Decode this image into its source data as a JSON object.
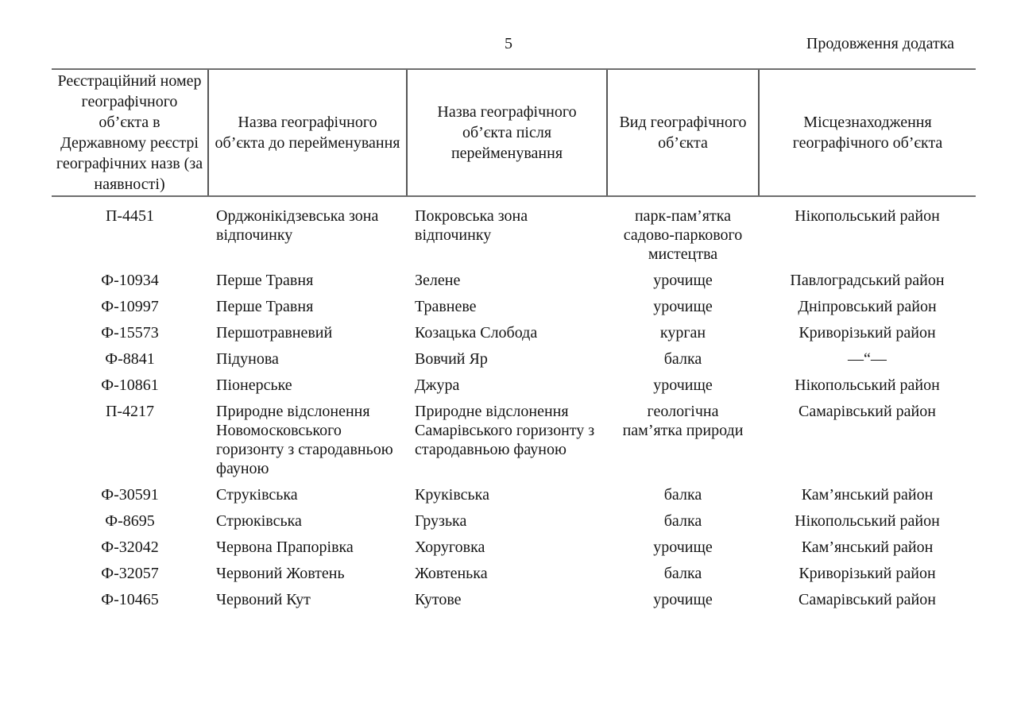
{
  "page": {
    "number": "5",
    "continuation": "Продовження додатка"
  },
  "table": {
    "headers": [
      "Реєстраційний номер географічного об’єкта в Державному реєстрі географічних назв (за наявності)",
      "Назва географічного об’єкта до перейменування",
      "Назва географічного об’єкта після перейменування",
      "Вид географічного об’єкта",
      "Місцезнаходження географічного об’єкта"
    ],
    "rows": [
      [
        "П-4451",
        "Орджонікідзевська зона відпочинку",
        "Покровська зона відпочинку",
        "парк-пам’ятка садово-паркового мистецтва",
        "Нікопольський район"
      ],
      [
        "Ф-10934",
        "Перше Травня",
        "Зелене",
        "урочище",
        "Павлоградський район"
      ],
      [
        "Ф-10997",
        "Перше Травня",
        "Травневе",
        "урочище",
        "Дніпровський район"
      ],
      [
        "Ф-15573",
        "Першотравневий",
        "Козацька Слобода",
        "курган",
        "Криворізький район"
      ],
      [
        "Ф-8841",
        "Підунова",
        "Вовчий Яр",
        "балка",
        "—“—"
      ],
      [
        "Ф-10861",
        "Піонерське",
        "Джура",
        "урочище",
        "Нікопольський район"
      ],
      [
        "П-4217",
        "Природне відслонення Новомосковського горизонту з стародавньою фауною",
        "Природне відслонення Самарівського горизонту з стародавньою фауною",
        "геологічна пам’ятка природи",
        "Самарівський район"
      ],
      [
        "Ф-30591",
        "Струківська",
        "Круківська",
        "балка",
        "Кам’янський район"
      ],
      [
        "Ф-8695",
        "Стрюківська",
        "Грузька",
        "балка",
        "Нікопольський район"
      ],
      [
        "Ф-32042",
        "Червона Прапорівка",
        "Хоруговка",
        "урочище",
        "Кам’янський район"
      ],
      [
        "Ф-32057",
        "Червоний Жовтень",
        "Жовтенька",
        "балка",
        "Криворізький район"
      ],
      [
        "Ф-10465",
        "Червоний Кут",
        "Кутове",
        "урочище",
        "Самарівський район"
      ]
    ]
  }
}
